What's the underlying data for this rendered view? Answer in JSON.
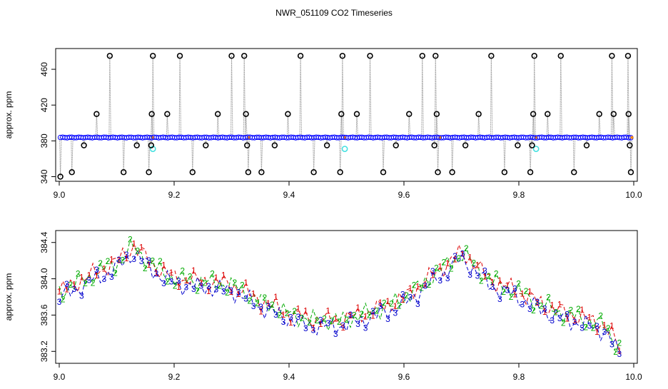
{
  "title": "NWR_051109  CO2 Timeseries",
  "chart_data": [
    {
      "type": "scatter",
      "ylabel": "approx. ppm",
      "xlim": [
        9.0,
        10.0
      ],
      "ylim": [
        338,
        480
      ],
      "x_ticks": [
        9.0,
        9.2,
        9.4,
        9.6,
        9.8,
        10.0
      ],
      "x_tick_labels": [
        "9.0",
        "9.2",
        "9.4",
        "9.6",
        "9.8",
        "10.0"
      ],
      "y_ticks": [
        340,
        380,
        420,
        460
      ],
      "y_tick_labels": [
        "340",
        "380",
        "420",
        "460"
      ],
      "grid": false,
      "baseline_ppm": 383.8,
      "baseline_color": "#0000ff",
      "trace_color": "#999999",
      "segment_marker_color": "#ff8c00",
      "outlier_color": "#000000",
      "low_outlier_color": "#40e0e0",
      "outliers": [
        {
          "x": 9.002,
          "y": 340
        },
        {
          "x": 9.022,
          "y": 345
        },
        {
          "x": 9.043,
          "y": 375
        },
        {
          "x": 9.065,
          "y": 410
        },
        {
          "x": 9.088,
          "y": 475
        },
        {
          "x": 9.112,
          "y": 345
        },
        {
          "x": 9.135,
          "y": 375
        },
        {
          "x": 9.156,
          "y": 345
        },
        {
          "x": 9.16,
          "y": 375
        },
        {
          "x": 9.161,
          "y": 410
        },
        {
          "x": 9.163,
          "y": 475
        },
        {
          "x": 9.188,
          "y": 410
        },
        {
          "x": 9.21,
          "y": 475
        },
        {
          "x": 9.232,
          "y": 345
        },
        {
          "x": 9.255,
          "y": 375
        },
        {
          "x": 9.276,
          "y": 410
        },
        {
          "x": 9.3,
          "y": 475
        },
        {
          "x": 9.322,
          "y": 475
        },
        {
          "x": 9.325,
          "y": 410
        },
        {
          "x": 9.327,
          "y": 375
        },
        {
          "x": 9.329,
          "y": 345
        },
        {
          "x": 9.352,
          "y": 345
        },
        {
          "x": 9.375,
          "y": 375
        },
        {
          "x": 9.398,
          "y": 410
        },
        {
          "x": 9.42,
          "y": 475
        },
        {
          "x": 9.443,
          "y": 345
        },
        {
          "x": 9.466,
          "y": 375
        },
        {
          "x": 9.489,
          "y": 345
        },
        {
          "x": 9.491,
          "y": 410
        },
        {
          "x": 9.493,
          "y": 475
        },
        {
          "x": 9.518,
          "y": 410
        },
        {
          "x": 9.541,
          "y": 475
        },
        {
          "x": 9.564,
          "y": 345
        },
        {
          "x": 9.586,
          "y": 375
        },
        {
          "x": 9.609,
          "y": 410
        },
        {
          "x": 9.632,
          "y": 475
        },
        {
          "x": 9.653,
          "y": 375
        },
        {
          "x": 9.655,
          "y": 475
        },
        {
          "x": 9.657,
          "y": 410
        },
        {
          "x": 9.659,
          "y": 345
        },
        {
          "x": 9.684,
          "y": 345
        },
        {
          "x": 9.707,
          "y": 375
        },
        {
          "x": 9.73,
          "y": 410
        },
        {
          "x": 9.752,
          "y": 475
        },
        {
          "x": 9.775,
          "y": 345
        },
        {
          "x": 9.798,
          "y": 375
        },
        {
          "x": 9.82,
          "y": 345
        },
        {
          "x": 9.823,
          "y": 375
        },
        {
          "x": 9.825,
          "y": 410
        },
        {
          "x": 9.827,
          "y": 475
        },
        {
          "x": 9.85,
          "y": 410
        },
        {
          "x": 9.873,
          "y": 475
        },
        {
          "x": 9.896,
          "y": 345
        },
        {
          "x": 9.918,
          "y": 375
        },
        {
          "x": 9.94,
          "y": 410
        },
        {
          "x": 9.962,
          "y": 475
        },
        {
          "x": 9.965,
          "y": 410
        },
        {
          "x": 9.99,
          "y": 475
        },
        {
          "x": 9.991,
          "y": 410
        },
        {
          "x": 9.993,
          "y": 375
        },
        {
          "x": 9.995,
          "y": 345
        }
      ],
      "low_outliers": [
        {
          "x": 9.163,
          "y": 371
        },
        {
          "x": 9.497,
          "y": 371
        },
        {
          "x": 9.83,
          "y": 371
        }
      ],
      "segment_breaks": [
        9.0,
        9.163,
        9.33,
        9.497,
        9.663,
        9.83,
        9.997
      ]
    },
    {
      "type": "line",
      "ylabel": "approx. ppm",
      "xlim": [
        9.0,
        10.0
      ],
      "ylim": [
        383.1,
        384.5
      ],
      "x_ticks": [
        9.0,
        9.2,
        9.4,
        9.6,
        9.8,
        10.0
      ],
      "x_tick_labels": [
        "9.0",
        "9.2",
        "9.4",
        "9.6",
        "9.8",
        "10.0"
      ],
      "y_ticks": [
        383.2,
        383.6,
        384.0,
        384.4
      ],
      "y_tick_labels": [
        "383.2",
        "383.6",
        "384.0",
        "384.4"
      ],
      "grid": false,
      "series": [
        {
          "name": "1",
          "color": "#dd0000",
          "y_offset": 0.04,
          "x": [
            9.0,
            9.1,
            9.13,
            9.17,
            9.2,
            9.3,
            9.35,
            9.4,
            9.45,
            9.5,
            9.55,
            9.6,
            9.65,
            9.7,
            9.72,
            9.75,
            9.8,
            9.85,
            9.9,
            9.95,
            9.975
          ],
          "y": [
            383.82,
            384.15,
            384.32,
            384.08,
            383.97,
            383.9,
            383.72,
            383.58,
            383.5,
            383.52,
            383.62,
            383.75,
            384.0,
            384.25,
            384.15,
            383.95,
            383.82,
            383.65,
            383.55,
            383.45,
            383.2
          ]
        },
        {
          "name": "2",
          "color": "#00aa00",
          "y_offset": 0.03,
          "x": [
            9.0,
            9.1,
            9.13,
            9.17,
            9.2,
            9.3,
            9.35,
            9.4,
            9.45,
            9.5,
            9.55,
            9.6,
            9.65,
            9.7,
            9.72,
            9.75,
            9.8,
            9.85,
            9.9,
            9.95,
            9.975
          ],
          "y": [
            383.82,
            384.15,
            384.32,
            384.08,
            383.97,
            383.9,
            383.72,
            383.58,
            383.5,
            383.52,
            383.62,
            383.75,
            384.0,
            384.25,
            384.15,
            383.95,
            383.82,
            383.65,
            383.55,
            383.45,
            383.2
          ]
        },
        {
          "name": "3",
          "color": "#0000cc",
          "y_offset": -0.03,
          "x": [
            9.0,
            9.1,
            9.13,
            9.17,
            9.2,
            9.3,
            9.35,
            9.4,
            9.45,
            9.5,
            9.55,
            9.6,
            9.65,
            9.7,
            9.72,
            9.75,
            9.8,
            9.85,
            9.9,
            9.95,
            9.975
          ],
          "y": [
            383.82,
            384.15,
            384.32,
            384.08,
            383.97,
            383.9,
            383.72,
            383.58,
            383.5,
            383.52,
            383.62,
            383.75,
            384.0,
            384.25,
            384.15,
            383.95,
            383.82,
            383.65,
            383.55,
            383.45,
            383.2
          ]
        }
      ]
    }
  ]
}
